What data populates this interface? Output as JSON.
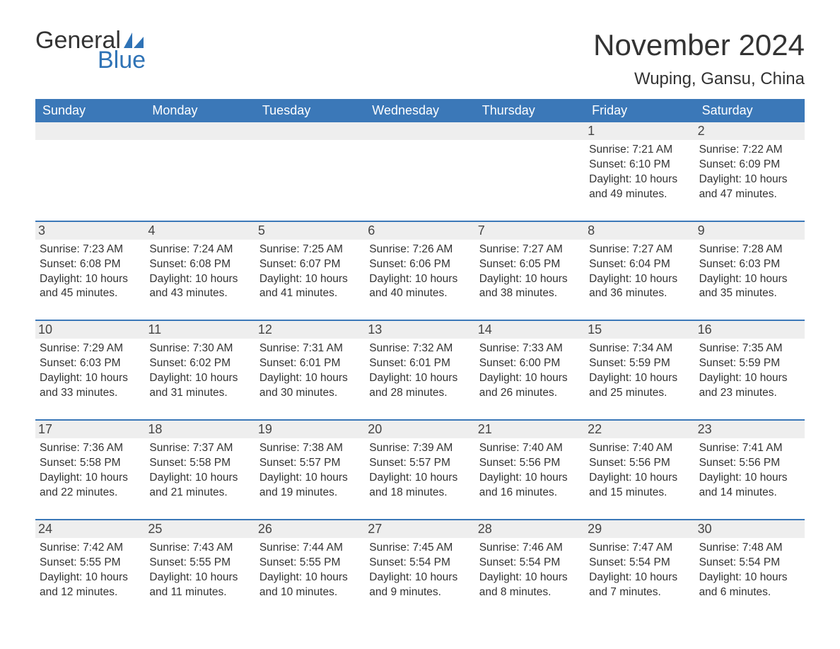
{
  "logo": {
    "text_top": "General",
    "text_bottom": "Blue",
    "icon_color": "#2f73b6"
  },
  "title": "November 2024",
  "location": "Wuping, Gansu, China",
  "colors": {
    "header_bg": "#3b78b8",
    "header_text": "#ffffff",
    "daynum_bg": "#eeeeee",
    "cell_border": "#3b78b8",
    "body_text": "#333333",
    "accent": "#2f73b6"
  },
  "day_names": [
    "Sunday",
    "Monday",
    "Tuesday",
    "Wednesday",
    "Thursday",
    "Friday",
    "Saturday"
  ],
  "weeks": [
    [
      {
        "empty": true
      },
      {
        "empty": true
      },
      {
        "empty": true
      },
      {
        "empty": true
      },
      {
        "empty": true
      },
      {
        "day": "1",
        "sunrise": "Sunrise: 7:21 AM",
        "sunset": "Sunset: 6:10 PM",
        "daylight": "Daylight: 10 hours and 49 minutes."
      },
      {
        "day": "2",
        "sunrise": "Sunrise: 7:22 AM",
        "sunset": "Sunset: 6:09 PM",
        "daylight": "Daylight: 10 hours and 47 minutes."
      }
    ],
    [
      {
        "day": "3",
        "sunrise": "Sunrise: 7:23 AM",
        "sunset": "Sunset: 6:08 PM",
        "daylight": "Daylight: 10 hours and 45 minutes."
      },
      {
        "day": "4",
        "sunrise": "Sunrise: 7:24 AM",
        "sunset": "Sunset: 6:08 PM",
        "daylight": "Daylight: 10 hours and 43 minutes."
      },
      {
        "day": "5",
        "sunrise": "Sunrise: 7:25 AM",
        "sunset": "Sunset: 6:07 PM",
        "daylight": "Daylight: 10 hours and 41 minutes."
      },
      {
        "day": "6",
        "sunrise": "Sunrise: 7:26 AM",
        "sunset": "Sunset: 6:06 PM",
        "daylight": "Daylight: 10 hours and 40 minutes."
      },
      {
        "day": "7",
        "sunrise": "Sunrise: 7:27 AM",
        "sunset": "Sunset: 6:05 PM",
        "daylight": "Daylight: 10 hours and 38 minutes."
      },
      {
        "day": "8",
        "sunrise": "Sunrise: 7:27 AM",
        "sunset": "Sunset: 6:04 PM",
        "daylight": "Daylight: 10 hours and 36 minutes."
      },
      {
        "day": "9",
        "sunrise": "Sunrise: 7:28 AM",
        "sunset": "Sunset: 6:03 PM",
        "daylight": "Daylight: 10 hours and 35 minutes."
      }
    ],
    [
      {
        "day": "10",
        "sunrise": "Sunrise: 7:29 AM",
        "sunset": "Sunset: 6:03 PM",
        "daylight": "Daylight: 10 hours and 33 minutes."
      },
      {
        "day": "11",
        "sunrise": "Sunrise: 7:30 AM",
        "sunset": "Sunset: 6:02 PM",
        "daylight": "Daylight: 10 hours and 31 minutes."
      },
      {
        "day": "12",
        "sunrise": "Sunrise: 7:31 AM",
        "sunset": "Sunset: 6:01 PM",
        "daylight": "Daylight: 10 hours and 30 minutes."
      },
      {
        "day": "13",
        "sunrise": "Sunrise: 7:32 AM",
        "sunset": "Sunset: 6:01 PM",
        "daylight": "Daylight: 10 hours and 28 minutes."
      },
      {
        "day": "14",
        "sunrise": "Sunrise: 7:33 AM",
        "sunset": "Sunset: 6:00 PM",
        "daylight": "Daylight: 10 hours and 26 minutes."
      },
      {
        "day": "15",
        "sunrise": "Sunrise: 7:34 AM",
        "sunset": "Sunset: 5:59 PM",
        "daylight": "Daylight: 10 hours and 25 minutes."
      },
      {
        "day": "16",
        "sunrise": "Sunrise: 7:35 AM",
        "sunset": "Sunset: 5:59 PM",
        "daylight": "Daylight: 10 hours and 23 minutes."
      }
    ],
    [
      {
        "day": "17",
        "sunrise": "Sunrise: 7:36 AM",
        "sunset": "Sunset: 5:58 PM",
        "daylight": "Daylight: 10 hours and 22 minutes."
      },
      {
        "day": "18",
        "sunrise": "Sunrise: 7:37 AM",
        "sunset": "Sunset: 5:58 PM",
        "daylight": "Daylight: 10 hours and 21 minutes."
      },
      {
        "day": "19",
        "sunrise": "Sunrise: 7:38 AM",
        "sunset": "Sunset: 5:57 PM",
        "daylight": "Daylight: 10 hours and 19 minutes."
      },
      {
        "day": "20",
        "sunrise": "Sunrise: 7:39 AM",
        "sunset": "Sunset: 5:57 PM",
        "daylight": "Daylight: 10 hours and 18 minutes."
      },
      {
        "day": "21",
        "sunrise": "Sunrise: 7:40 AM",
        "sunset": "Sunset: 5:56 PM",
        "daylight": "Daylight: 10 hours and 16 minutes."
      },
      {
        "day": "22",
        "sunrise": "Sunrise: 7:40 AM",
        "sunset": "Sunset: 5:56 PM",
        "daylight": "Daylight: 10 hours and 15 minutes."
      },
      {
        "day": "23",
        "sunrise": "Sunrise: 7:41 AM",
        "sunset": "Sunset: 5:56 PM",
        "daylight": "Daylight: 10 hours and 14 minutes."
      }
    ],
    [
      {
        "day": "24",
        "sunrise": "Sunrise: 7:42 AM",
        "sunset": "Sunset: 5:55 PM",
        "daylight": "Daylight: 10 hours and 12 minutes."
      },
      {
        "day": "25",
        "sunrise": "Sunrise: 7:43 AM",
        "sunset": "Sunset: 5:55 PM",
        "daylight": "Daylight: 10 hours and 11 minutes."
      },
      {
        "day": "26",
        "sunrise": "Sunrise: 7:44 AM",
        "sunset": "Sunset: 5:55 PM",
        "daylight": "Daylight: 10 hours and 10 minutes."
      },
      {
        "day": "27",
        "sunrise": "Sunrise: 7:45 AM",
        "sunset": "Sunset: 5:54 PM",
        "daylight": "Daylight: 10 hours and 9 minutes."
      },
      {
        "day": "28",
        "sunrise": "Sunrise: 7:46 AM",
        "sunset": "Sunset: 5:54 PM",
        "daylight": "Daylight: 10 hours and 8 minutes."
      },
      {
        "day": "29",
        "sunrise": "Sunrise: 7:47 AM",
        "sunset": "Sunset: 5:54 PM",
        "daylight": "Daylight: 10 hours and 7 minutes."
      },
      {
        "day": "30",
        "sunrise": "Sunrise: 7:48 AM",
        "sunset": "Sunset: 5:54 PM",
        "daylight": "Daylight: 10 hours and 6 minutes."
      }
    ]
  ]
}
